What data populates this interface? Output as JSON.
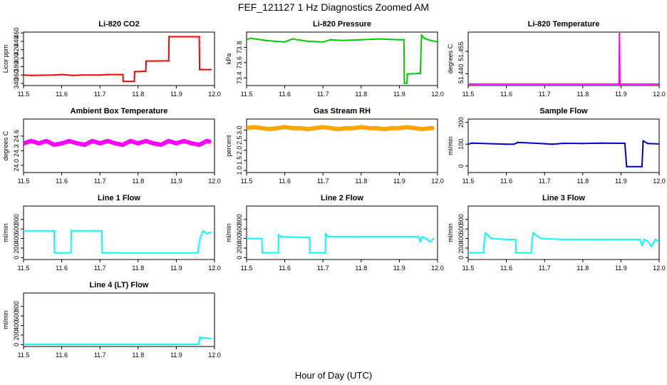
{
  "figure": {
    "title": "FEF_121127  1 Hz Diagnostics Zoomed AM",
    "xlabel": "Hour of Day (UTC)"
  },
  "chart_data": [
    {
      "type": "line",
      "title": "Li-820 CO2",
      "ylabel": "Licor ppm",
      "color": "#ff0000",
      "xlim": [
        11.5,
        12.0
      ],
      "ylim": [
        335,
        462
      ],
      "yticks": [
        340,
        360,
        380,
        400,
        420,
        440,
        460
      ],
      "ytick_labels": [
        "340",
        "360",
        "380",
        "400",
        "420",
        "440",
        "460"
      ],
      "xticks": [
        11.5,
        11.6,
        11.7,
        11.8,
        11.9,
        12.0
      ],
      "xtick_labels": [
        "11.5",
        "11.6",
        "11.7",
        "11.8",
        "11.9",
        "12.0"
      ],
      "series": [
        {
          "x": [
            11.5,
            11.52,
            11.58,
            11.6,
            11.63,
            11.65,
            11.7,
            11.72,
            11.76,
            11.761,
            11.79,
            11.791,
            11.82,
            11.821,
            11.88,
            11.881,
            11.96,
            11.961,
            11.97,
            11.99
          ],
          "y": [
            360,
            359,
            360,
            361,
            359,
            360,
            360,
            361,
            361,
            345,
            345,
            368,
            369,
            393,
            394,
            451,
            451,
            373,
            373,
            373
          ]
        }
      ]
    },
    {
      "type": "line",
      "title": "Li-820 Pressure",
      "ylabel": "kPa",
      "color": "#00cc00",
      "xlim": [
        11.5,
        12.0
      ],
      "ylim": [
        73.3,
        74.0
      ],
      "yticks": [
        73.4,
        73.6,
        73.8
      ],
      "ytick_labels": [
        "73.4",
        "73.6",
        "73.8"
      ],
      "xticks": [
        11.5,
        11.6,
        11.7,
        11.8,
        11.9,
        12.0
      ],
      "xtick_labels": [
        "11.5",
        "11.6",
        "11.7",
        "11.8",
        "11.9",
        "12.0"
      ],
      "series": [
        {
          "x": [
            11.5,
            11.51,
            11.55,
            11.6,
            11.62,
            11.66,
            11.7,
            11.72,
            11.75,
            11.8,
            11.85,
            11.9,
            11.912,
            11.913,
            11.92,
            11.921,
            11.955,
            11.958,
            11.965,
            11.975,
            12.0
          ],
          "y": [
            73.9,
            73.92,
            73.89,
            73.87,
            73.91,
            73.88,
            73.87,
            73.9,
            73.89,
            73.9,
            73.91,
            73.9,
            73.9,
            73.33,
            73.33,
            73.45,
            73.46,
            73.96,
            73.92,
            73.9,
            73.87
          ]
        }
      ]
    },
    {
      "type": "line",
      "title": "Li-820 Temperature",
      "ylabel": "degrees C",
      "color": "#ff00ff",
      "xlim": [
        11.5,
        12.0
      ],
      "ylim": [
        51.432,
        51.468
      ],
      "yticks": [
        51.44,
        51.455
      ],
      "ytick_labels": [
        "51.440",
        "51.455"
      ],
      "xticks": [
        11.5,
        11.6,
        11.7,
        11.8,
        11.9,
        12.0
      ],
      "xtick_labels": [
        "11.5",
        "11.6",
        "11.7",
        "11.8",
        "11.9",
        "12.0"
      ],
      "series": [
        {
          "x": [
            11.5,
            11.895,
            11.896,
            11.897,
            11.898,
            12.0
          ],
          "y": [
            51.433,
            51.433,
            51.467,
            51.433,
            51.433,
            51.433
          ]
        }
      ]
    },
    {
      "type": "line",
      "title": "Ambient Box Temperature",
      "ylabel": "degrees C",
      "color": "#ff00ff",
      "xlim": [
        11.5,
        12.0
      ],
      "ylim": [
        23.85,
        24.95
      ],
      "yticks": [
        24.0,
        24.3,
        24.6
      ],
      "ytick_labels": [
        "24.0",
        "24.3",
        "24.6"
      ],
      "xticks": [
        11.5,
        11.6,
        11.7,
        11.8,
        11.9,
        12.0
      ],
      "xtick_labels": [
        "11.5",
        "11.6",
        "11.7",
        "11.8",
        "11.9",
        "12.0"
      ],
      "series": [
        {
          "x": [
            11.5,
            11.52,
            11.54,
            11.56,
            11.58,
            11.6,
            11.62,
            11.64,
            11.66,
            11.68,
            11.7,
            11.72,
            11.74,
            11.76,
            11.78,
            11.8,
            11.82,
            11.84,
            11.86,
            11.88,
            11.9,
            11.92,
            11.94,
            11.96,
            11.98,
            11.99
          ],
          "y": [
            24.45,
            24.5,
            24.45,
            24.5,
            24.42,
            24.45,
            24.5,
            24.45,
            24.42,
            24.5,
            24.45,
            24.5,
            24.45,
            24.42,
            24.5,
            24.45,
            24.5,
            24.45,
            24.42,
            24.5,
            24.45,
            24.5,
            24.45,
            24.42,
            24.5,
            24.48
          ]
        }
      ]
    },
    {
      "type": "line",
      "title": "Gas Stream RH",
      "ylabel": "percent",
      "color": "#ffa500",
      "xlim": [
        11.5,
        12.0
      ],
      "ylim": [
        0.9,
        3.55
      ],
      "yticks": [
        1.0,
        1.5,
        2.0,
        2.5,
        3.0
      ],
      "ytick_labels": [
        "1.0",
        "1.5",
        "2.0",
        "2.5",
        "3.0"
      ],
      "xticks": [
        11.5,
        11.6,
        11.7,
        11.8,
        11.9,
        12.0
      ],
      "xtick_labels": [
        "11.5",
        "11.6",
        "11.7",
        "11.8",
        "11.9",
        "12.0"
      ],
      "series": [
        {
          "x": [
            11.5,
            11.52,
            11.54,
            11.56,
            11.58,
            11.6,
            11.62,
            11.64,
            11.66,
            11.68,
            11.7,
            11.72,
            11.74,
            11.76,
            11.78,
            11.8,
            11.82,
            11.84,
            11.86,
            11.88,
            11.9,
            11.92,
            11.94,
            11.96,
            11.98,
            11.99
          ],
          "y": [
            3.1,
            3.15,
            3.1,
            3.05,
            3.1,
            3.15,
            3.1,
            3.1,
            3.05,
            3.1,
            3.15,
            3.1,
            3.05,
            3.1,
            3.1,
            3.15,
            3.1,
            3.1,
            3.05,
            3.1,
            3.1,
            3.15,
            3.1,
            3.05,
            3.1,
            3.1
          ]
        }
      ]
    },
    {
      "type": "line",
      "title": "Sample Flow",
      "ylabel": "ml/min",
      "color": "#0000cc",
      "xlim": [
        11.5,
        12.0
      ],
      "ylim": [
        -30,
        215
      ],
      "yticks": [
        0,
        100,
        200
      ],
      "ytick_labels": [
        "0",
        "100",
        "200"
      ],
      "xticks": [
        11.5,
        11.6,
        11.7,
        11.8,
        11.9,
        12.0
      ],
      "xtick_labels": [
        "11.5",
        "11.6",
        "11.7",
        "11.8",
        "11.9",
        "12.0"
      ],
      "series": [
        {
          "x": [
            11.5,
            11.51,
            11.6,
            11.62,
            11.63,
            11.7,
            11.72,
            11.75,
            11.8,
            11.85,
            11.91,
            11.915,
            11.955,
            11.958,
            11.97,
            12.0
          ],
          "y": [
            100,
            105,
            100,
            100,
            108,
            102,
            100,
            104,
            103,
            105,
            104,
            -3,
            -3,
            115,
            103,
            101
          ]
        }
      ]
    },
    {
      "type": "line",
      "title": "Line 1 Flow",
      "ylabel": "ml/min",
      "color": "#00ffff",
      "xlim": [
        11.5,
        12.0
      ],
      "ylim": [
        -40,
        1080
      ],
      "yticks": [
        0,
        200,
        400,
        600,
        800
      ],
      "ytick_labels": [
        "0",
        "200",
        "400",
        "600",
        "800"
      ],
      "xticks": [
        11.5,
        11.6,
        11.7,
        11.8,
        11.9,
        12.0
      ],
      "xtick_labels": [
        "11.5",
        "11.6",
        "11.7",
        "11.8",
        "11.9",
        "12.0"
      ],
      "series": [
        {
          "x": [
            11.5,
            11.58,
            11.581,
            11.624,
            11.625,
            11.705,
            11.706,
            11.956,
            11.962,
            11.97,
            11.98,
            11.99
          ],
          "y": [
            560,
            560,
            100,
            100,
            560,
            560,
            100,
            100,
            400,
            560,
            500,
            530
          ]
        }
      ]
    },
    {
      "type": "line",
      "title": "Line 2 Flow",
      "ylabel": "ml/min",
      "color": "#00ffff",
      "xlim": [
        11.5,
        12.0
      ],
      "ylim": [
        -40,
        1080
      ],
      "yticks": [
        0,
        200,
        400,
        600,
        800
      ],
      "ytick_labels": [
        "0",
        "200",
        "400",
        "600",
        "800"
      ],
      "xticks": [
        11.5,
        11.6,
        11.7,
        11.8,
        11.9,
        12.0
      ],
      "xtick_labels": [
        "11.5",
        "11.6",
        "11.7",
        "11.8",
        "11.9",
        "12.0"
      ],
      "series": [
        {
          "x": [
            11.5,
            11.54,
            11.541,
            11.583,
            11.584,
            11.59,
            11.665,
            11.666,
            11.706,
            11.707,
            11.712,
            11.75,
            11.8,
            11.85,
            11.9,
            11.95,
            11.955,
            11.96,
            11.97,
            11.98,
            11.99
          ],
          "y": [
            400,
            400,
            100,
            100,
            480,
            440,
            420,
            100,
            100,
            500,
            440,
            440,
            440,
            440,
            440,
            440,
            330,
            440,
            400,
            330,
            400
          ]
        }
      ]
    },
    {
      "type": "line",
      "title": "Line 3 Flow",
      "ylabel": "ml/min",
      "color": "#00ffff",
      "xlim": [
        11.5,
        12.0
      ],
      "ylim": [
        -40,
        1080
      ],
      "yticks": [
        0,
        200,
        400,
        600,
        800
      ],
      "ytick_labels": [
        "0",
        "200",
        "400",
        "600",
        "800"
      ],
      "xticks": [
        11.5,
        11.6,
        11.7,
        11.8,
        11.9,
        12.0
      ],
      "xtick_labels": [
        "11.5",
        "11.6",
        "11.7",
        "11.8",
        "11.9",
        "12.0"
      ],
      "series": [
        {
          "x": [
            11.5,
            11.54,
            11.541,
            11.545,
            11.56,
            11.6,
            11.624,
            11.625,
            11.665,
            11.666,
            11.67,
            11.69,
            11.75,
            11.8,
            11.85,
            11.9,
            11.95,
            11.955,
            11.96,
            11.97,
            11.98,
            11.99,
            12.0
          ],
          "y": [
            100,
            100,
            250,
            520,
            400,
            380,
            380,
            100,
            100,
            250,
            520,
            400,
            380,
            380,
            380,
            380,
            380,
            250,
            380,
            340,
            230,
            380,
            330
          ]
        }
      ]
    },
    {
      "type": "line",
      "title": "Line 4 (LT) Flow",
      "ylabel": "ml/min",
      "color": "#00ffff",
      "xlim": [
        11.5,
        12.0
      ],
      "ylim": [
        -40,
        1080
      ],
      "yticks": [
        0,
        200,
        400,
        600,
        800
      ],
      "ytick_labels": [
        "0",
        "200",
        "400",
        "600",
        "800"
      ],
      "xticks": [
        11.5,
        11.6,
        11.7,
        11.8,
        11.9,
        12.0
      ],
      "xtick_labels": [
        "11.5",
        "11.6",
        "11.7",
        "11.8",
        "11.9",
        "12.0"
      ],
      "series": [
        {
          "x": [
            11.5,
            11.7,
            11.9,
            11.958,
            11.962,
            11.965,
            11.975,
            11.99
          ],
          "y": [
            5,
            5,
            5,
            5,
            160,
            130,
            140,
            125
          ]
        }
      ]
    }
  ]
}
